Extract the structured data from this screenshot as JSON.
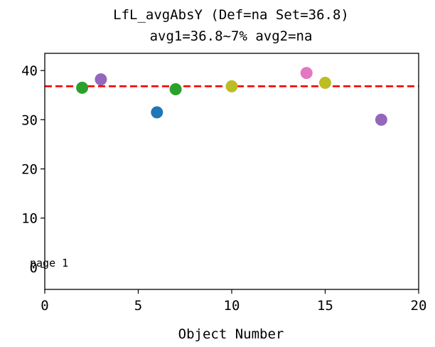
{
  "chart_data": {
    "type": "scatter",
    "title": [
      "LfL_avgAbsY (Def=na Set=36.8)",
      "avg1=36.8~7% avg2=na"
    ],
    "xlabel": "Object Number",
    "ylabel": "",
    "xlim": [
      0,
      20
    ],
    "ylim": [
      -4.5,
      43.5
    ],
    "xticks": [
      0,
      5,
      10,
      15,
      20
    ],
    "yticks": [
      0,
      10,
      20,
      30,
      40
    ],
    "grid": false,
    "reference_line": {
      "y": 36.8,
      "color": "#ff0000",
      "style": "dashed"
    },
    "annotation": {
      "text": "page 1",
      "x": 0,
      "y": 0
    },
    "points": [
      {
        "x": 2,
        "y": 36.5,
        "color": "#2ca02c"
      },
      {
        "x": 3,
        "y": 38.2,
        "color": "#9467bd"
      },
      {
        "x": 6,
        "y": 31.5,
        "color": "#1f77b4"
      },
      {
        "x": 7,
        "y": 36.2,
        "color": "#2ca02c"
      },
      {
        "x": 10,
        "y": 36.8,
        "color": "#bcbd22"
      },
      {
        "x": 14,
        "y": 39.5,
        "color": "#e377c2"
      },
      {
        "x": 15,
        "y": 37.5,
        "color": "#bcbd22"
      },
      {
        "x": 18,
        "y": 30.0,
        "color": "#9467bd"
      }
    ]
  }
}
